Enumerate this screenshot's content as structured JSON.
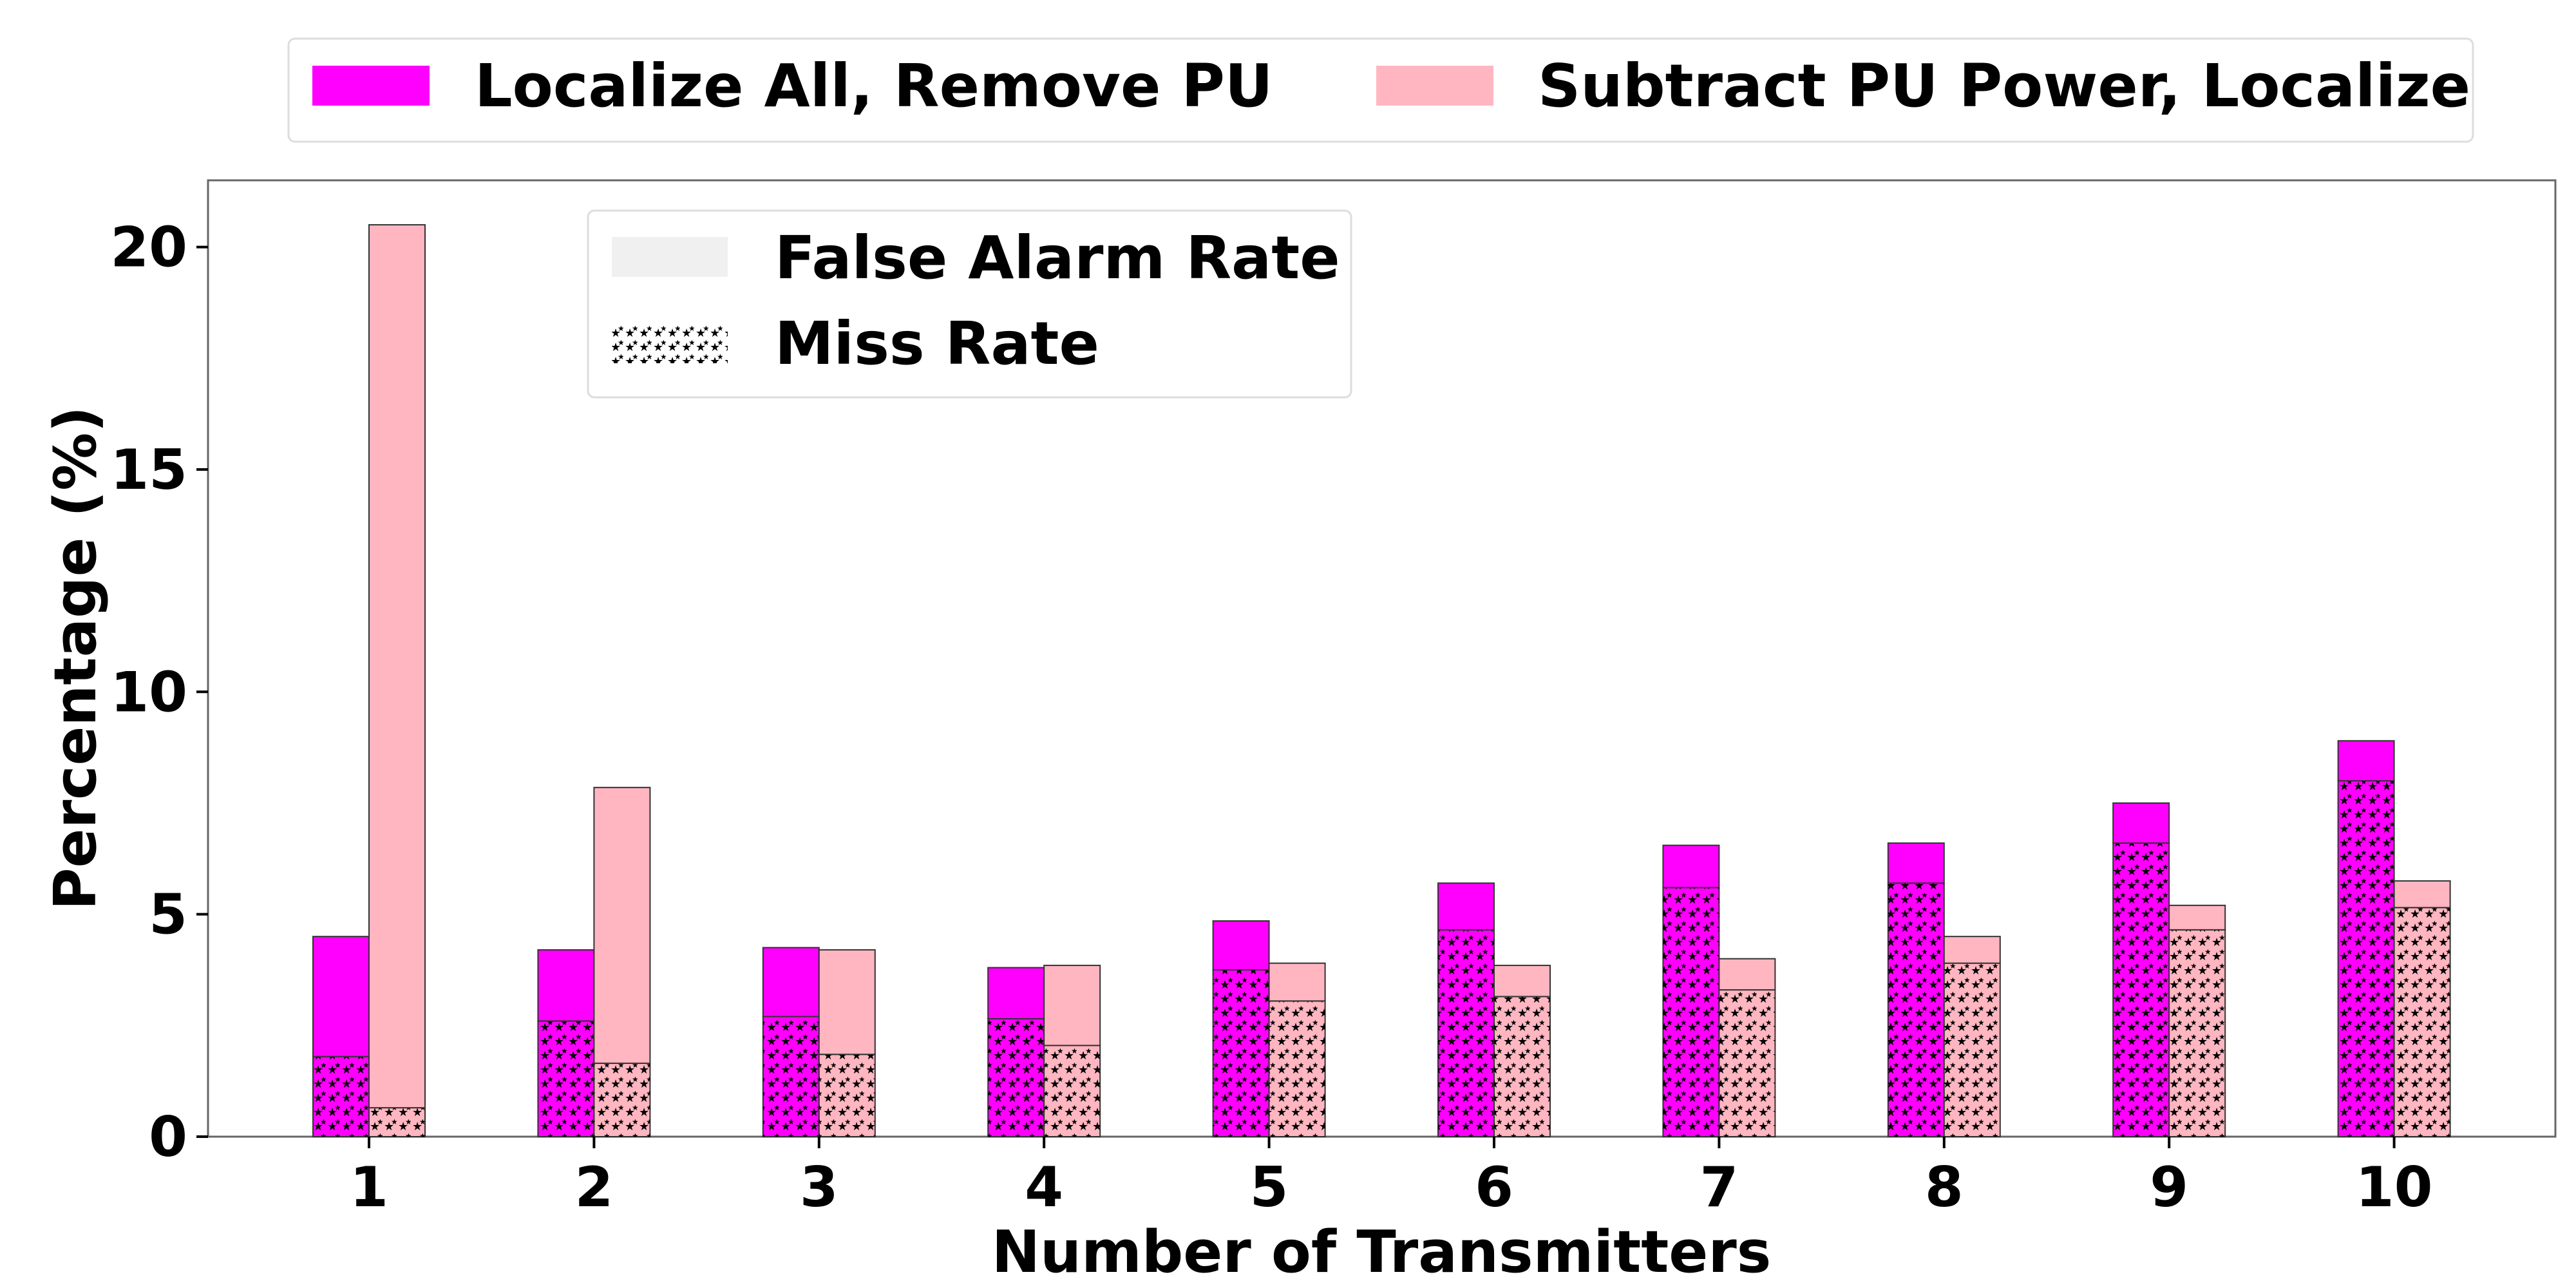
{
  "chart_data": {
    "type": "bar",
    "stacked_components": true,
    "xlabel": "Number of Transmitters",
    "ylabel": "Percentage (%)",
    "ylim": [
      0,
      21.5
    ],
    "yticks": [
      0,
      5,
      10,
      15,
      20
    ],
    "categories": [
      "1",
      "2",
      "3",
      "4",
      "5",
      "6",
      "7",
      "8",
      "9",
      "10"
    ],
    "series": [
      {
        "name": "Localize All, Remove PU",
        "color": "#ff00ff",
        "miss_rate": [
          1.8,
          2.6,
          2.7,
          2.65,
          3.75,
          4.65,
          5.6,
          5.7,
          6.6,
          8.0
        ],
        "false_alarm_rate": [
          2.7,
          1.6,
          1.55,
          1.15,
          1.1,
          1.05,
          0.95,
          0.9,
          0.9,
          0.9
        ]
      },
      {
        "name": "Subtract PU Power, Localize",
        "color": "#ffb6c1",
        "miss_rate": [
          0.65,
          1.65,
          1.85,
          2.05,
          3.05,
          3.15,
          3.3,
          3.9,
          4.65,
          5.15
        ],
        "false_alarm_rate": [
          19.85,
          6.2,
          2.35,
          1.8,
          0.85,
          0.7,
          0.7,
          0.6,
          0.55,
          0.6
        ]
      }
    ],
    "legend_series": {
      "placement": "top-center",
      "items": [
        "Localize All, Remove PU",
        "Subtract PU Power, Localize"
      ]
    },
    "legend_components": {
      "placement": "upper-left",
      "items": [
        {
          "label": "False Alarm Rate",
          "fill": "#f0f0f0",
          "hatch": "none"
        },
        {
          "label": "Miss Rate",
          "fill": "#ffffff",
          "hatch": "stars"
        }
      ]
    },
    "grid": false
  }
}
